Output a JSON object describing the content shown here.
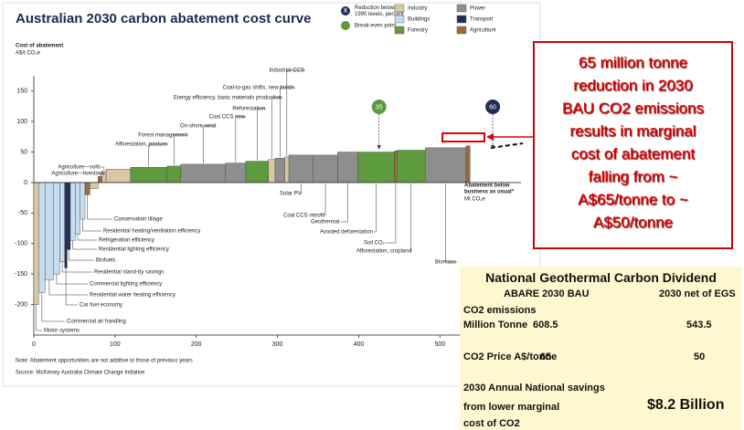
{
  "chart_data": {
    "type": "cost-curve",
    "title": "Australian 2030 carbon abatement cost curve",
    "ylabel": [
      "Cost of abatement",
      "A$/t CO₂e"
    ],
    "xlabel": [
      "Abatement below",
      "business as usual*",
      "Mt CO₂e"
    ],
    "xlim": [
      0,
      575
    ],
    "xticks": [
      0,
      100,
      200,
      300,
      400,
      500
    ],
    "ylim": [
      -250,
      175
    ],
    "yticks": [
      -200,
      -150,
      -100,
      -50,
      0,
      50,
      100,
      150
    ],
    "series": [
      {
        "name": "Industry",
        "color": "#d8c8a6"
      },
      {
        "name": "Buildings",
        "color": "#c6dcef"
      },
      {
        "name": "Forestry",
        "color": "#5e9b3e"
      },
      {
        "name": "Power",
        "color": "#8e8e8e"
      },
      {
        "name": "Transport",
        "color": "#1f2d58"
      },
      {
        "name": "Agriculture",
        "color": "#9a6a3a"
      }
    ],
    "marker_legend": [
      {
        "symbol": "X",
        "color": "#1f2d58",
        "text": [
          "Reduction below",
          "1990 levels, percent"
        ]
      },
      {
        "color": "#5e9b3e",
        "text": [
          "Break-even point"
        ]
      }
    ],
    "bars": [
      {
        "name": "Motor systems",
        "width": 6,
        "value": -200,
        "series": 0
      },
      {
        "name": "Commercial air handling",
        "width": 8,
        "value": -180,
        "series": 1
      },
      {
        "name": "Residential water heating efficiency",
        "width": 10,
        "value": -160,
        "series": 1
      },
      {
        "name": "Commercial lighting efficiency",
        "width": 8,
        "value": -150,
        "series": 1
      },
      {
        "name": "Residential stand-by savings",
        "width": 6,
        "value": -130,
        "series": 1
      },
      {
        "name": "Car fuel economy",
        "width": 3,
        "value": -140,
        "series": 4
      },
      {
        "name": "Biofuels",
        "width": 4,
        "value": -110,
        "series": 4
      },
      {
        "name": "Residential lighting efficiency",
        "width": 6,
        "value": -95,
        "series": 1
      },
      {
        "name": "Refrigeration efficiency",
        "width": 6,
        "value": -85,
        "series": 1
      },
      {
        "name": "Residential heating/ventilation efficiency",
        "width": 6,
        "value": -60,
        "series": 1
      },
      {
        "name": "Conservation tillage",
        "width": 6,
        "value": -20,
        "series": 5
      },
      {
        "width": 10,
        "value": -10,
        "series": 0
      },
      {
        "name": "Agriculture—livestock",
        "width": 5,
        "value": 10,
        "series": 5
      },
      {
        "name": "Agriculture—soils",
        "width": 5,
        "value": 18,
        "series": 0
      },
      {
        "width": 30,
        "value": 22,
        "series": 0
      },
      {
        "name": "Afforestation, pasture",
        "width": 45,
        "value": 25,
        "series": 2
      },
      {
        "name": "Forest management",
        "width": 17,
        "value": 27,
        "series": 2
      },
      {
        "name": "On-shore wind",
        "width": 55,
        "value": 30,
        "series": 3
      },
      {
        "name": "Coal CCS new",
        "width": 25,
        "value": 32,
        "series": 3
      },
      {
        "name": "Reforestation",
        "width": 28,
        "value": 35,
        "series": 2
      },
      {
        "name": "Energy efficiency, basic materials production",
        "width": 8,
        "value": 38,
        "series": 0
      },
      {
        "name": "Coal-to-gas shifts, new builds",
        "width": 12,
        "value": 40,
        "series": 3
      },
      {
        "name": "Industrial CCS",
        "width": 5,
        "value": 42,
        "series": 0
      },
      {
        "name": "Solar PV",
        "width": 30,
        "value": 45,
        "series": 3
      },
      {
        "name": "Coal CCS retrofit",
        "width": 30,
        "value": 45,
        "series": 3
      },
      {
        "name": "Geothermal",
        "width": 25,
        "value": 50,
        "series": 3
      },
      {
        "name": "Avoided deforestation",
        "width": 45,
        "value": 50,
        "series": 2
      },
      {
        "name": "Soil CO₂",
        "width": 3,
        "value": 52,
        "series": 5
      },
      {
        "name": "Afforestation, cropland",
        "width": 35,
        "value": 53,
        "series": 2
      },
      {
        "name": "Biomass",
        "width": 50,
        "value": 57,
        "series": 3
      },
      {
        "width": 5,
        "value": 60,
        "series": 5
      }
    ],
    "markers": [
      {
        "label": 35,
        "x": 425,
        "color": "#5e9b3e"
      },
      {
        "label": 60,
        "x": 565,
        "color": "#1f2d58"
      }
    ],
    "notes": [
      "Note: Abatement opportunities are not additive to those of previous years",
      "Source: McKinsey Australia Climate Change Initiative"
    ]
  },
  "callout": [
    "65 million tonne",
    "reduction in 2030",
    "BAU CO2 emissions",
    "results in marginal",
    "cost of abatement",
    "falling from ~",
    "A$65/tonne to ~",
    "A$50/tonne"
  ],
  "table": {
    "title": "National Geothermal Carbon Dividend",
    "columns": [
      "ABARE 2030 BAU",
      "2030 net of EGS"
    ],
    "rows": [
      {
        "label": [
          "CO2 emissions",
          "Million Tonne"
        ],
        "values": [
          608.5,
          543.5
        ]
      },
      {
        "label": [
          "CO2 Price A$/tonne"
        ],
        "values": [
          65,
          50
        ]
      }
    ],
    "savings": {
      "label": [
        "2030 Annual National savings",
        "from lower marginal",
        "cost of CO2"
      ],
      "value": "$8.2 Billion"
    }
  }
}
